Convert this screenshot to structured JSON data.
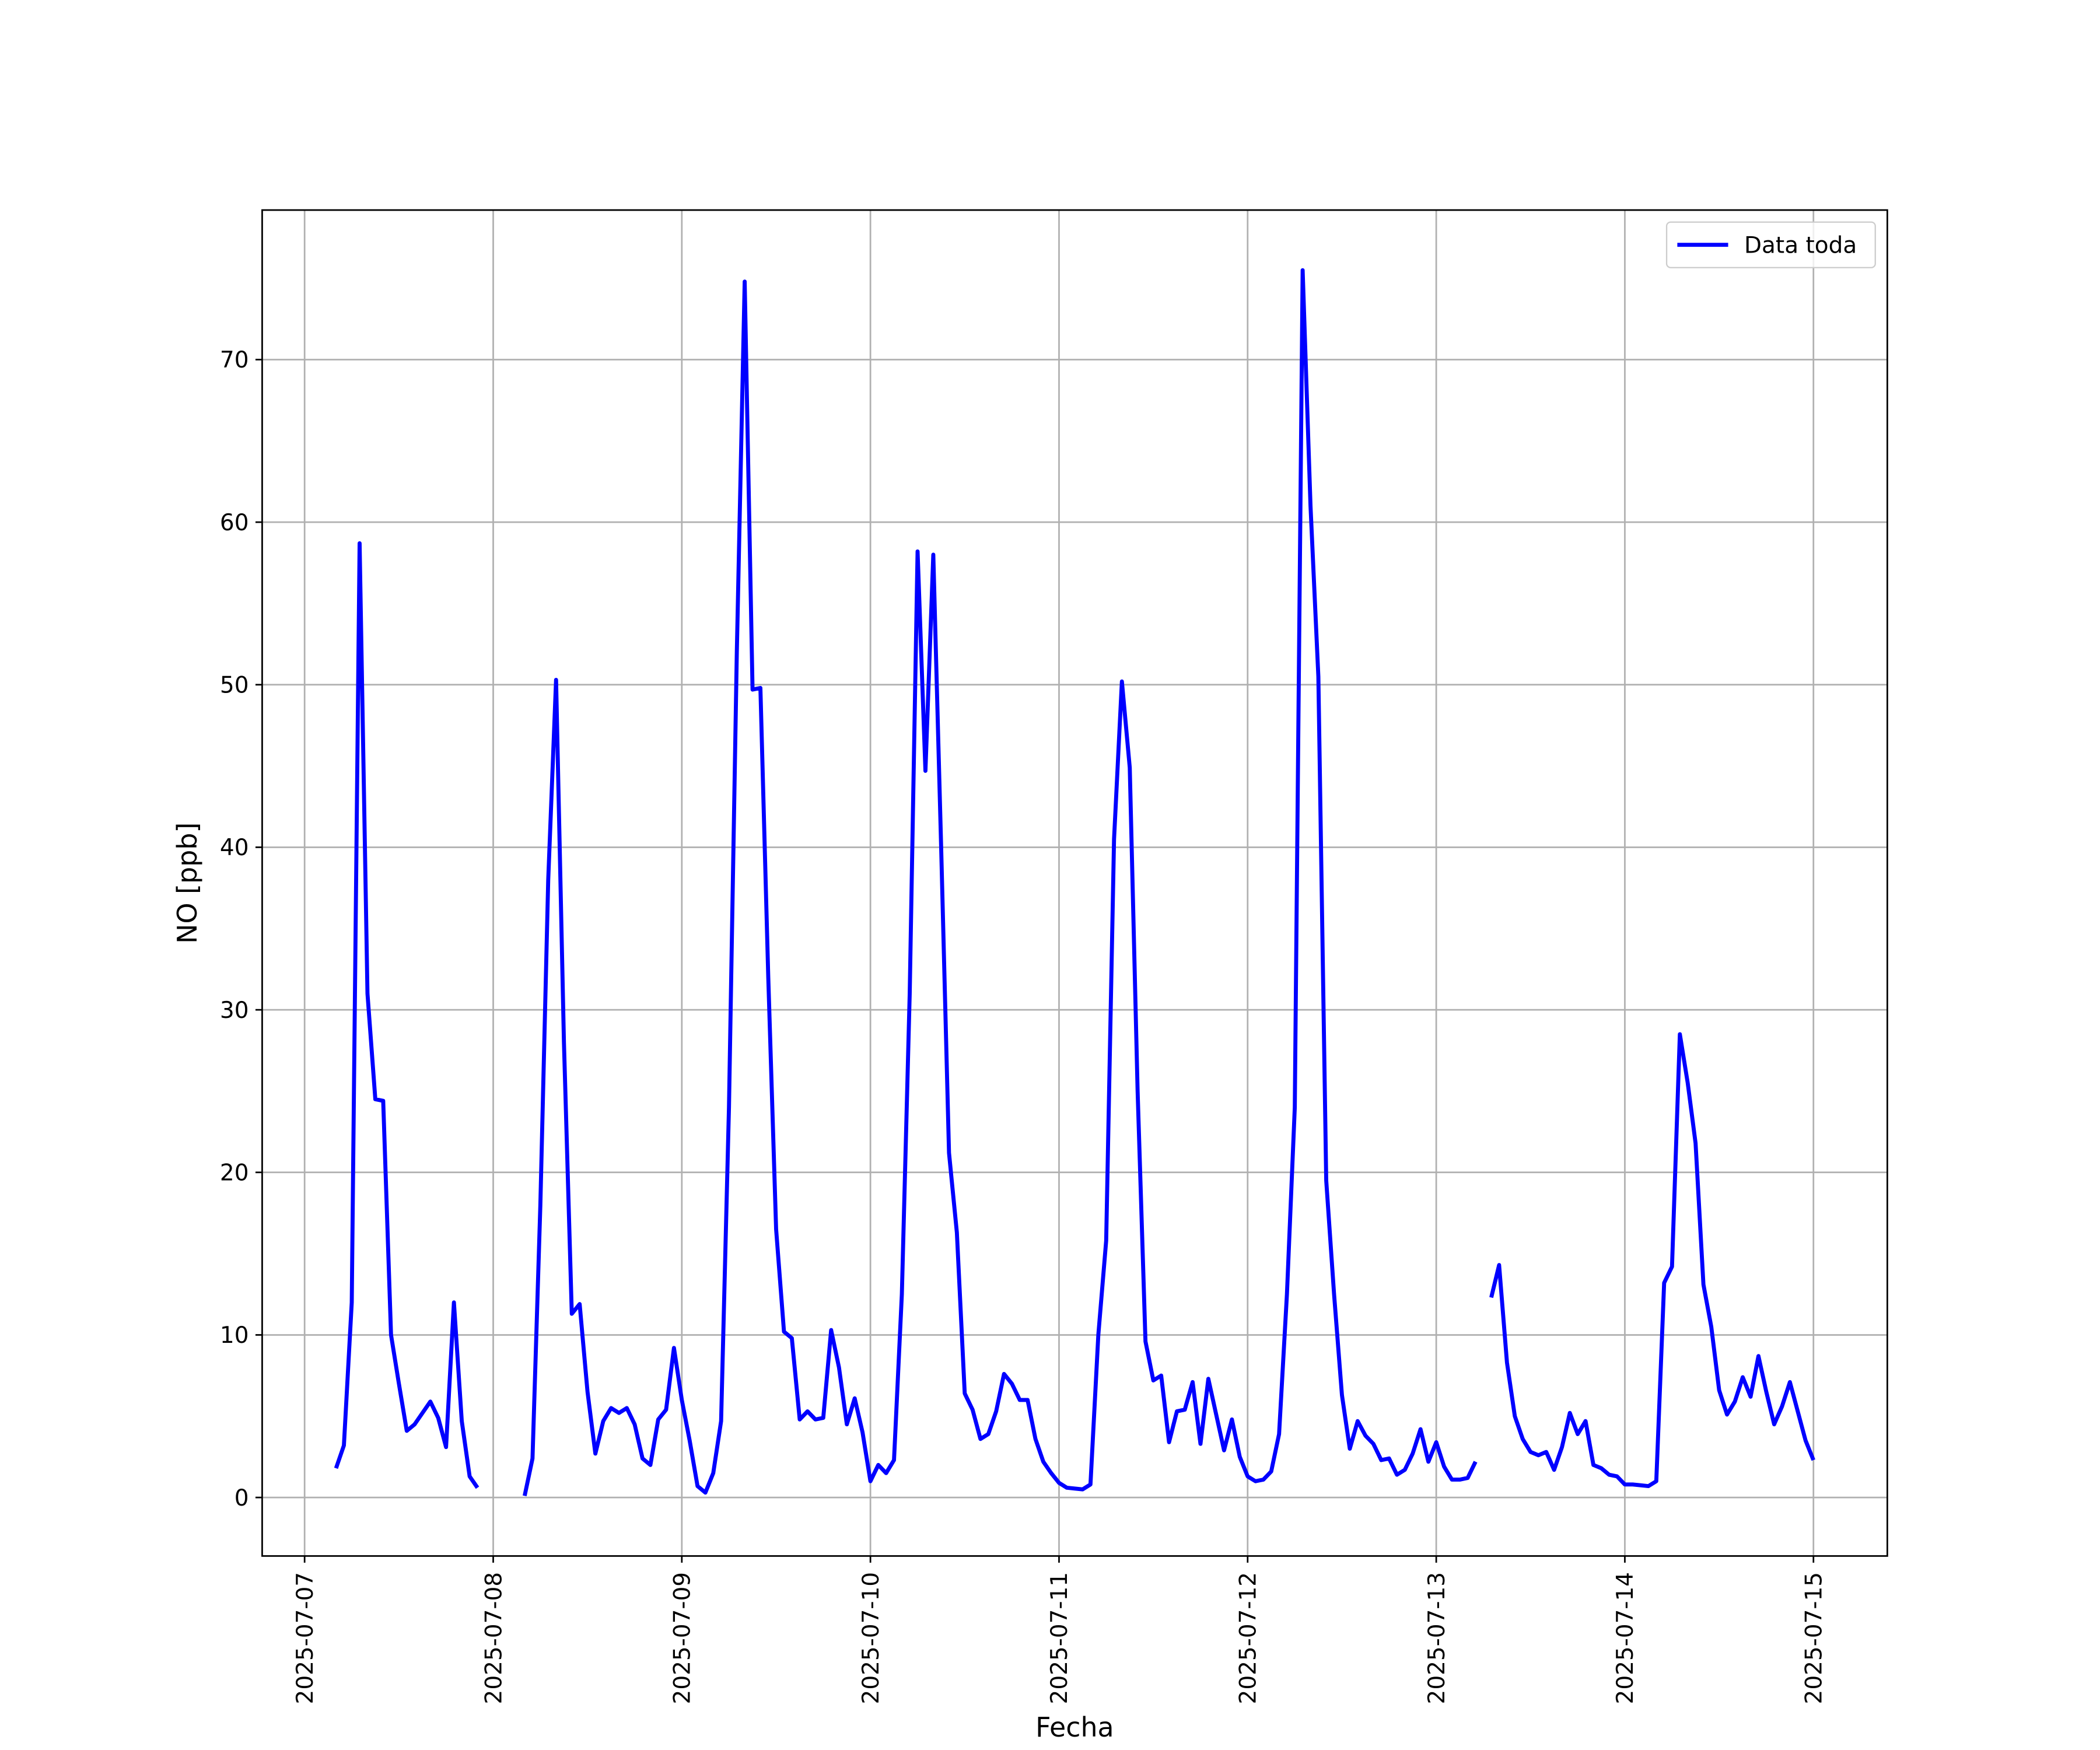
{
  "chart_data": {
    "type": "line",
    "xlabel": "Fecha",
    "ylabel": "NO [ppb]",
    "x": [
      4,
      5,
      6,
      7,
      8,
      9,
      10,
      11,
      12,
      13,
      14,
      15,
      16,
      17,
      18,
      19,
      20,
      21,
      22,
      25,
      28,
      29,
      30,
      31,
      32,
      33,
      34,
      35,
      36,
      37,
      38,
      39,
      40,
      41,
      42,
      43,
      44,
      45,
      46,
      47,
      48,
      49,
      50,
      51,
      52,
      53,
      54,
      55,
      56,
      57,
      58,
      59,
      60,
      61,
      62,
      63,
      64,
      65,
      66,
      67,
      68,
      69,
      70,
      71,
      72,
      73,
      74,
      75,
      76,
      77,
      78,
      79,
      80,
      81,
      82,
      83,
      84,
      85,
      86,
      87,
      88,
      89,
      90,
      91,
      92,
      93,
      94,
      95,
      96,
      97,
      98,
      99,
      100,
      101,
      102,
      103,
      104,
      105,
      106,
      107,
      108,
      109,
      110,
      111,
      112,
      113,
      114,
      115,
      116,
      117,
      118,
      119,
      120,
      121,
      122,
      123,
      124,
      125,
      126,
      127,
      128,
      129,
      130,
      131,
      132,
      133,
      134,
      135,
      136,
      137,
      138,
      139,
      140,
      141,
      142,
      143,
      144,
      145,
      146,
      147,
      148,
      149,
      150,
      151,
      152,
      153,
      154,
      155,
      156,
      157,
      158,
      159,
      160,
      161,
      162,
      163,
      164,
      165,
      166,
      167,
      168,
      169,
      170,
      171,
      172,
      173,
      174,
      175,
      176,
      177,
      178,
      179,
      180,
      181,
      182,
      183,
      184,
      185,
      186,
      187,
      188,
      189,
      190,
      191,
      192
    ],
    "series": [
      {
        "name": "Data toda",
        "color": "#0000ff",
        "values": [
          1.8,
          3.2,
          12,
          58.7,
          31,
          24.5,
          24.4,
          10,
          7,
          4.1,
          4.5,
          5.2,
          5.9,
          4.9,
          3.1,
          12,
          4.7,
          1.3,
          0.6,
          null,
          0.1,
          2.4,
          18,
          38,
          50.3,
          28,
          11.3,
          11.9,
          6.5,
          2.7,
          4.7,
          5.5,
          5.2,
          5.5,
          4.5,
          2.4,
          2.0,
          4.8,
          5.4,
          9.2,
          6.0,
          3.5,
          0.7,
          0.3,
          1.5,
          4.7,
          24,
          52,
          74.8,
          49.7,
          49.8,
          32,
          16.5,
          10.2,
          9.8,
          4.8,
          5.3,
          4.8,
          4.9,
          10.3,
          8,
          4.5,
          6.1,
          4,
          1.0,
          2.0,
          1.5,
          2.3,
          12.5,
          31,
          58.2,
          44.7,
          58,
          40,
          21.2,
          16.3,
          6.4,
          5.4,
          3.6,
          3.9,
          5.3,
          7.6,
          7.0,
          6.0,
          6.0,
          3.6,
          2.2,
          1.5,
          0.9,
          0.6,
          0.55,
          0.5,
          0.8,
          10,
          15.8,
          40.5,
          50.2,
          44.9,
          25,
          9.6,
          7.2,
          7.5,
          3.4,
          5.3,
          5.4,
          7.1,
          3.3,
          7.3,
          5.1,
          2.9,
          4.8,
          2.5,
          1.3,
          1.0,
          1.1,
          1.6,
          3.9,
          12.5,
          24,
          75.5,
          61,
          50.5,
          19.5,
          12.5,
          6.3,
          3.0,
          4.7,
          3.8,
          3.3,
          2.3,
          2.4,
          1.4,
          1.7,
          2.7,
          4.2,
          2.2,
          3.4,
          1.9,
          1.1,
          1.1,
          1.2,
          2.2,
          null,
          12.3,
          14.3,
          8.3,
          5.0,
          3.6,
          2.8,
          2.6,
          2.8,
          1.7,
          3.1,
          5.2,
          3.9,
          4.7,
          2.0,
          1.8,
          1.4,
          1.3,
          0.8,
          0.8,
          0.75,
          0.7,
          1.0,
          13.2,
          14.2,
          28.5,
          25.5,
          21.8,
          13.1,
          10.5,
          6.6,
          5.1,
          5.9,
          7.4,
          6.2,
          8.7,
          6.5,
          4.5,
          5.6,
          7.1,
          5.3,
          3.5,
          2.3
        ]
      }
    ],
    "xlim": [
      -5.4,
      201.4
    ],
    "ylim": [
      -3.6,
      79.2
    ],
    "xticks": [
      {
        "value": 0,
        "label": "2025-07-07"
      },
      {
        "value": 24,
        "label": "2025-07-08"
      },
      {
        "value": 48,
        "label": "2025-07-09"
      },
      {
        "value": 72,
        "label": "2025-07-10"
      },
      {
        "value": 96,
        "label": "2025-07-11"
      },
      {
        "value": 120,
        "label": "2025-07-12"
      },
      {
        "value": 144,
        "label": "2025-07-13"
      },
      {
        "value": 168,
        "label": "2025-07-14"
      },
      {
        "value": 192,
        "label": "2025-07-15"
      }
    ],
    "yticks": [
      0,
      10,
      20,
      30,
      40,
      50,
      60,
      70
    ],
    "grid": true,
    "legend": "upper right"
  }
}
